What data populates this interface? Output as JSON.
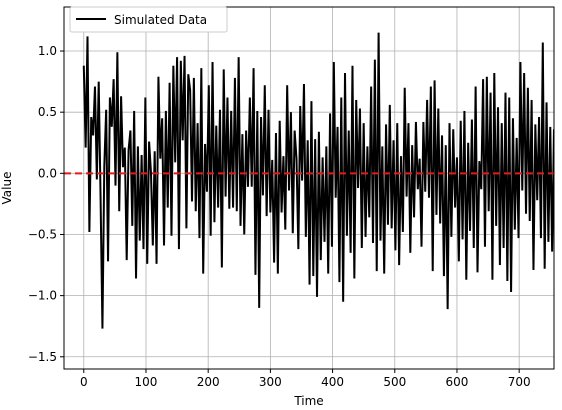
{
  "chart_data": {
    "type": "line",
    "title": "",
    "xlabel": "Time",
    "ylabel": "Value",
    "xlim": [
      -31.8,
      756
    ],
    "ylim": [
      -1.6,
      1.36
    ],
    "xticks": [
      0,
      100,
      200,
      300,
      400,
      500,
      600,
      700
    ],
    "yticks": [
      -1.5,
      -1.0,
      -0.5,
      0.0,
      0.5,
      1.0
    ],
    "ytick_labels": [
      "−1.5",
      "−1.0",
      "−0.5",
      "0.0",
      "0.5",
      "1.0"
    ],
    "grid": true,
    "legend": {
      "placement": "top-left",
      "entries": [
        "Simulated Data"
      ]
    },
    "series": [
      {
        "name": "Simulated Data",
        "color": "#000000",
        "x_start": 0,
        "x_step": 3,
        "values": [
          0.88,
          0.21,
          1.12,
          -0.48,
          0.46,
          0.31,
          0.71,
          -0.05,
          0.75,
          -0.2,
          -1.27,
          0.06,
          0.52,
          -0.72,
          0.62,
          0.38,
          0.77,
          -0.1,
          0.99,
          -0.31,
          0.63,
          0.05,
          0.21,
          -0.71,
          0.19,
          0.35,
          -0.43,
          0.51,
          -0.86,
          0.22,
          -0.55,
          0.15,
          -0.62,
          0.62,
          -0.74,
          0.26,
          0.01,
          -0.59,
          0.18,
          -0.74,
          0.79,
          0.12,
          0.45,
          -0.59,
          0.51,
          -0.28,
          0.74,
          -0.51,
          0.88,
          0.09,
          0.95,
          -0.62,
          0.92,
          0.27,
          0.96,
          -0.45,
          0.81,
          0.68,
          -0.23,
          0.78,
          -0.31,
          0.41,
          -0.53,
          0.86,
          -0.82,
          0.24,
          -0.15,
          0.72,
          -0.51,
          0.91,
          -0.4,
          0.39,
          -0.28,
          0.52,
          -0.77,
          0.85,
          -0.19,
          0.62,
          -0.29,
          0.51,
          -0.28,
          0.78,
          -0.31,
          0.95,
          -0.43,
          0.32,
          -0.5,
          0.35,
          -0.11,
          0.62,
          -0.11,
          0.86,
          -0.83,
          0.51,
          -1.1,
          0.46,
          -0.18,
          0.72,
          -0.35,
          0.52,
          -0.32,
          0.11,
          -0.73,
          0.33,
          -0.82,
          0.43,
          -0.32,
          0.14,
          -0.46,
          0.72,
          -0.14,
          0.5,
          -0.49,
          0.35,
          0.12,
          -0.62,
          0.55,
          -0.06,
          0.73,
          -0.52,
          0.27,
          -0.91,
          0.59,
          -0.84,
          0.28,
          -1.01,
          0.34,
          -0.71,
          0.13,
          -0.56,
          0.22,
          -0.82,
          0.49,
          -0.6,
          0.91,
          -0.2,
          0.38,
          -0.89,
          0.62,
          -1.05,
          0.82,
          -0.51,
          0.35,
          -0.65,
          0.88,
          -0.86,
          0.6,
          -0.12,
          0.53,
          -0.61,
          0.41,
          -0.52,
          0.22,
          -0.36,
          0.71,
          -0.57,
          0.93,
          -0.8,
          1.15,
          -0.55,
          0.22,
          -0.82,
          0.4,
          -0.42,
          0.56,
          -0.45,
          0.27,
          -0.63,
          0.41,
          -0.75,
          0.14,
          -0.48,
          0.7,
          -0.19,
          0.41,
          -0.65,
          0.23,
          -0.36,
          0.42,
          -0.13,
          0.12,
          -0.6,
          0.42,
          -0.15,
          0.6,
          -0.2,
          0.71,
          -0.8,
          0.76,
          -0.34,
          0.53,
          -0.41,
          0.31,
          -0.84,
          0.23,
          -1.11,
          0.41,
          -0.52,
          0.36,
          -0.28,
          0.13,
          -0.72,
          0.43,
          -0.54,
          0.51,
          -0.87,
          0.25,
          -0.47,
          0.44,
          -0.61,
          0.71,
          -0.81,
          0.1,
          -0.13,
          0.77,
          -0.6,
          0.79,
          -0.31,
          0.66,
          -0.87,
          0.82,
          -0.43,
          0.54,
          -0.75,
          0.41,
          -0.61,
          0.66,
          -0.88,
          0.62,
          -0.97,
          0.45,
          -0.46,
          0.29,
          -0.53,
          0.91,
          -0.14,
          0.82,
          -0.33,
          0.7,
          -0.39,
          0.6,
          -0.79,
          0.4,
          -0.22,
          0.46,
          -0.53,
          1.07,
          -0.78,
          0.58,
          -0.56,
          0.38,
          -0.64,
          0.36,
          -0.62,
          0.66,
          -0.41,
          0.89,
          -0.28,
          0.22,
          -0.47,
          0.52,
          -0.56,
          0.49,
          -0.41,
          0.15,
          -0.22,
          0.3,
          -0.59,
          0.71,
          -0.82,
          0.46,
          -0.47,
          0.19,
          -0.98,
          0.49,
          -0.14,
          0.46,
          -0.56,
          0.29,
          -0.72,
          0.42,
          -0.37,
          0.71,
          -0.51,
          0.18,
          -0.6,
          0.27,
          -0.87,
          0.49,
          -0.61,
          0.5,
          -0.68,
          0.41,
          -0.37,
          0.82,
          -0.59,
          0.73,
          -0.48,
          0.36,
          -0.97,
          0.92,
          -0.4,
          0.58,
          -0.21,
          0.67,
          -1.06,
          0.5,
          -0.81,
          0.34,
          -0.6,
          0.85,
          -0.62,
          0.53,
          -0.39,
          0.62,
          -0.77,
          0.35,
          -0.53,
          0.55,
          -0.28,
          0.78,
          -0.68,
          0.67,
          -0.49,
          0.48,
          -0.82,
          0.3,
          -0.89,
          0.31,
          -0.61,
          0.52,
          -0.97,
          0.7,
          -0.34,
          0.85,
          -0.49,
          0.36,
          -0.44,
          0.59,
          -0.16,
          0.5,
          -0.86,
          0.87,
          -0.39,
          0.71,
          -0.55,
          0.38,
          -1.07,
          0.57,
          -0.86,
          0.25,
          -0.62,
          0.78,
          -0.24,
          0.65,
          -0.65,
          0.69,
          -1.01,
          1.18,
          -0.17,
          0.68,
          -0.42,
          0.36,
          -0.79,
          0.82,
          -0.81,
          0.57,
          -0.42,
          0.29,
          -0.38,
          0.63,
          -1.13,
          0.48,
          -0.58,
          0.19,
          -0.85,
          0.68,
          -0.59,
          0.36,
          -0.47,
          0.79,
          -0.74,
          0.45,
          -0.71,
          0.45,
          -0.56,
          0.59,
          -0.28,
          0.87,
          -0.25,
          0.61,
          -0.62,
          0.55,
          -0.73,
          0.47,
          -1.3,
          0.33,
          -0.72,
          0.5,
          -0.89,
          0.64,
          -0.44,
          0.51,
          -0.27,
          0.95,
          -0.53,
          0.47,
          -0.74,
          0.65,
          -0.54,
          0.32,
          -1.51,
          0.47,
          -0.25,
          0.45,
          -0.96,
          0.48,
          -0.21,
          0.76,
          -0.55,
          0.57,
          -0.58,
          0.48,
          -0.92,
          0.34,
          -0.39,
          0.52,
          -0.45,
          0.89,
          -0.52,
          0.47,
          -0.48,
          0.39,
          -0.98,
          0.24,
          -0.67,
          0.31,
          -0.54,
          0.69,
          -0.51,
          0.46,
          -0.85,
          0.65,
          -0.79,
          0.56,
          -1.17,
          0.46,
          -0.29,
          0.75,
          -0.79,
          0.42,
          -0.57,
          0.48,
          -0.64,
          0.72,
          -0.54,
          0.36,
          -0.79,
          0.49,
          -0.71,
          0.43,
          -0.65,
          0.92,
          -0.18,
          0.52,
          -0.73,
          0.46,
          -0.6,
          0.23,
          -1.03,
          0.62,
          -0.45,
          0.36,
          -0.59,
          0.53,
          -0.78,
          0.91,
          -0.32,
          0.72,
          -0.35,
          0.61,
          -0.76,
          0.48,
          -0.38,
          0.81,
          -0.65,
          0.47,
          -0.51,
          0.34,
          -0.82,
          0.43,
          -0.48,
          0.31,
          -0.61,
          0.37,
          -1.41,
          1.18,
          -0.13,
          1.09,
          -0.45,
          0.99,
          -0.5,
          0.69,
          -0.56,
          0.87,
          -0.21,
          0.59,
          -0.62,
          0.58,
          -0.29,
          0.64,
          -0.82,
          0.44,
          -0.48,
          0.45,
          -1.1,
          0.62,
          -0.35,
          0.41,
          -0.72
        ]
      },
      {
        "name": "",
        "color": "#e41a1c",
        "dashed": true,
        "y_constant": 0.0
      }
    ]
  }
}
